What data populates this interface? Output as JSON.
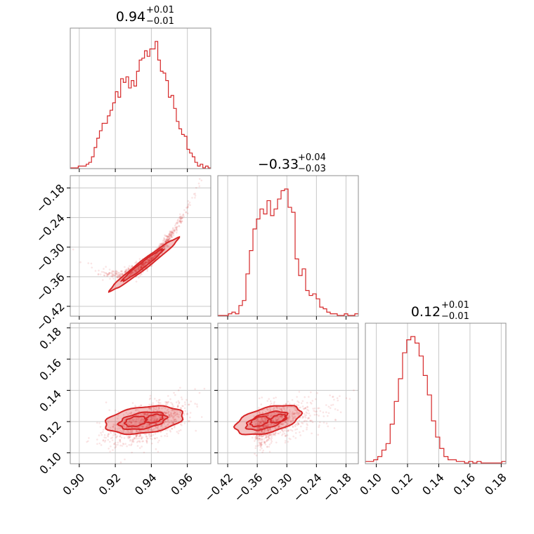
{
  "chart_data": {
    "type": "corner",
    "color": "#d62728",
    "parameters": [
      {
        "median": 0.94,
        "plus": 0.01,
        "minus": 0.01,
        "title_text": "0.94",
        "plus_text": "+0.01",
        "minus_text": "−0.01",
        "range": [
          0.895,
          0.973
        ],
        "ticks": [
          0.9,
          0.92,
          0.94,
          0.96
        ],
        "tick_labels": [
          "0.90",
          "0.92",
          "0.94",
          "0.96"
        ]
      },
      {
        "median": -0.33,
        "plus": 0.04,
        "minus": 0.03,
        "title_text": "−0.33",
        "plus_text": "+0.04",
        "minus_text": "−0.03",
        "range": [
          -0.44,
          -0.155
        ],
        "ticks": [
          -0.42,
          -0.36,
          -0.3,
          -0.24,
          -0.18
        ],
        "tick_labels": [
          "−0.42",
          "−0.36",
          "−0.30",
          "−0.24",
          "−0.18"
        ]
      },
      {
        "median": 0.12,
        "plus": 0.01,
        "minus": 0.01,
        "title_text": "0.12",
        "plus_text": "+0.01",
        "minus_text": "−0.01",
        "range": [
          0.093,
          0.183
        ],
        "ticks": [
          0.1,
          0.12,
          0.14,
          0.16,
          0.18
        ],
        "tick_labels": [
          "0.10",
          "0.12",
          "0.14",
          "0.16",
          "0.18"
        ]
      }
    ],
    "histograms": [
      {
        "param": 0,
        "bin_edges": [
          0.895,
          0.973
        ],
        "counts": [
          0,
          0,
          0,
          1,
          1,
          1,
          2,
          3,
          6,
          11,
          16,
          20,
          24,
          24,
          28,
          31,
          35,
          41,
          38,
          48,
          46,
          49,
          43,
          47,
          44,
          52,
          58,
          59,
          63,
          60,
          64,
          64,
          68,
          58,
          52,
          51,
          47,
          38,
          39,
          32,
          25,
          21,
          18,
          17,
          10,
          8,
          6,
          3,
          1,
          2,
          0,
          1,
          0
        ]
      },
      {
        "param": 1,
        "bin_edges": [
          -0.44,
          -0.155
        ],
        "counts": [
          0,
          0,
          0,
          1,
          2,
          1,
          6,
          9,
          25,
          39,
          52,
          58,
          64,
          61,
          69,
          60,
          64,
          70,
          75,
          76,
          65,
          62,
          34,
          24,
          28,
          15,
          12,
          13,
          10,
          5,
          4,
          2,
          1,
          1,
          0,
          0,
          1,
          0,
          0,
          1
        ]
      },
      {
        "param": 2,
        "bin_edges": [
          0.093,
          0.183
        ],
        "counts": [
          1,
          1,
          2,
          4,
          8,
          12,
          24,
          38,
          52,
          68,
          76,
          78,
          74,
          66,
          54,
          42,
          26,
          16,
          9,
          4,
          2,
          2,
          1,
          1,
          0,
          1,
          0,
          1,
          0,
          0,
          0,
          0,
          0,
          1
        ]
      }
    ],
    "pairs": [
      {
        "x_param": 0,
        "y_param": 1
      },
      {
        "x_param": 0,
        "y_param": 2
      },
      {
        "x_param": 1,
        "y_param": 2
      }
    ],
    "grid": true
  }
}
